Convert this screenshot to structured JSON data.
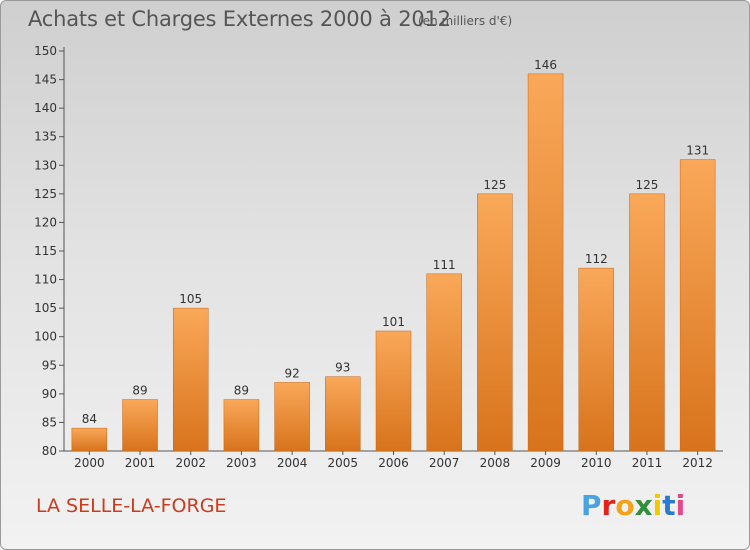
{
  "header": {
    "title": "Achats et Charges Externes 2000 à 2012",
    "unit": "(en milliers d'€)"
  },
  "footer": {
    "commune": "LA SELLE-LA-FORGE",
    "logo": "Proxiti",
    "logo_colors": [
      "#4aa3df",
      "#e2231a",
      "#f7a11a",
      "#2f8f3a",
      "#f6c700",
      "#2b7bd3",
      "#e8468b"
    ]
  },
  "colors": {
    "bar_light": "#f9a859",
    "bar_dark": "#d8731c",
    "commune": "#cc3b1b"
  },
  "chart_data": {
    "type": "bar",
    "title": "Achats et Charges Externes 2000 à 2012",
    "subtitle": "(en milliers d'€)",
    "xlabel": "",
    "ylabel": "",
    "categories": [
      "2000",
      "2001",
      "2002",
      "2003",
      "2004",
      "2005",
      "2006",
      "2007",
      "2008",
      "2009",
      "2010",
      "2011",
      "2012"
    ],
    "values": [
      84,
      89,
      105,
      89,
      92,
      93,
      101,
      111,
      125,
      146,
      112,
      125,
      131
    ],
    "ylim": [
      80,
      150
    ],
    "yticks": [
      80,
      85,
      90,
      95,
      100,
      105,
      110,
      115,
      120,
      125,
      130,
      135,
      140,
      145,
      150
    ],
    "grid": false,
    "legend": "none"
  }
}
